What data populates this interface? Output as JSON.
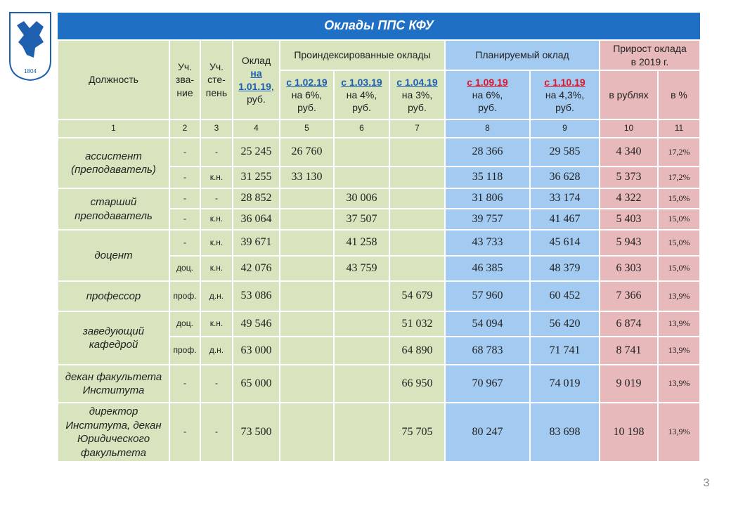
{
  "title": "Оклады ППС КФУ",
  "logo_year": "1804",
  "page_number": "3",
  "header": {
    "position": "Должность",
    "rank": "Уч.\nзва-\nние",
    "degree": "Уч.\nсте-\nпень",
    "salary": {
      "label": "Оклад",
      "date": "на\n1.01.19",
      "unit": ",\nруб."
    },
    "indexed": {
      "title": "Проиндексированные  оклады",
      "subs": [
        {
          "date": "с 1.02.19",
          "text": "на 6%,\nруб."
        },
        {
          "date": "с 1.03.19",
          "text": "на 4%,\nруб."
        },
        {
          "date": "с 1.04.19",
          "text": "на 3%,\nруб."
        }
      ]
    },
    "planned": {
      "title": "Планируемый оклад",
      "subs": [
        {
          "date": "с 1.09.19",
          "text": "на 6%,\nруб."
        },
        {
          "date": "с 1.10.19",
          "text": "на 4,3%,\nруб."
        }
      ]
    },
    "growth": {
      "title": "Прирост оклада\nв 2019 г.",
      "subs": [
        "в рублях",
        "в %"
      ]
    },
    "numbers": [
      "1",
      "2",
      "3",
      "4",
      "5",
      "6",
      "7",
      "8",
      "9",
      "10",
      "11"
    ]
  },
  "groups": [
    {
      "position": "ассистент\n(преподаватель)",
      "rows": [
        [
          "-",
          "-",
          "25 245",
          "26 760",
          null,
          null,
          "28 366",
          "29 585",
          "4 340",
          "17,2%"
        ],
        [
          "-",
          "к.н.",
          "31 255",
          "33 130",
          null,
          null,
          "35 118",
          "36 628",
          "5 373",
          "17,2%"
        ]
      ]
    },
    {
      "position": "старший\nпреподаватель",
      "rows": [
        [
          "-",
          "-",
          "28 852",
          null,
          "30 006",
          null,
          "31 806",
          "33 174",
          "4 322",
          "15,0%"
        ],
        [
          "-",
          "к.н.",
          "36 064",
          null,
          "37 507",
          null,
          "39 757",
          "41 467",
          "5 403",
          "15,0%"
        ]
      ]
    },
    {
      "position": "доцент",
      "rows": [
        [
          "-",
          "к.н.",
          "39 671",
          null,
          "41 258",
          null,
          "43 733",
          "45 614",
          "5 943",
          "15,0%"
        ],
        [
          "доц.",
          "к.н.",
          "42 076",
          null,
          "43 759",
          null,
          "46 385",
          "48 379",
          "6 303",
          "15,0%"
        ]
      ]
    },
    {
      "position": "профессор",
      "rows": [
        [
          "проф.",
          "д.н.",
          "53 086",
          null,
          null,
          "54 679",
          "57 960",
          "60 452",
          "7 366",
          "13,9%"
        ]
      ]
    },
    {
      "position": "заведующий\nкафедрой",
      "rows": [
        [
          "доц.",
          "к.н.",
          "49 546",
          null,
          null,
          "51 032",
          "54 094",
          "56 420",
          "6 874",
          "13,9%"
        ],
        [
          "проф.",
          "д.н.",
          "63 000",
          null,
          null,
          "64 890",
          "68 783",
          "71 741",
          "8 741",
          "13,9%"
        ]
      ]
    },
    {
      "position": "декан факультета\nИнститута",
      "rows": [
        [
          "-",
          "-",
          "65 000",
          null,
          null,
          "66 950",
          "70 967",
          "74 019",
          "9 019",
          "13,9%"
        ]
      ]
    },
    {
      "position": "директор\nИнститута, декан\nЮридического\nфакультета",
      "rows": [
        [
          "-",
          "-",
          "73 500",
          null,
          null,
          "75 705",
          "80 247",
          "83 698",
          "10 198",
          "13,9%"
        ]
      ]
    }
  ]
}
